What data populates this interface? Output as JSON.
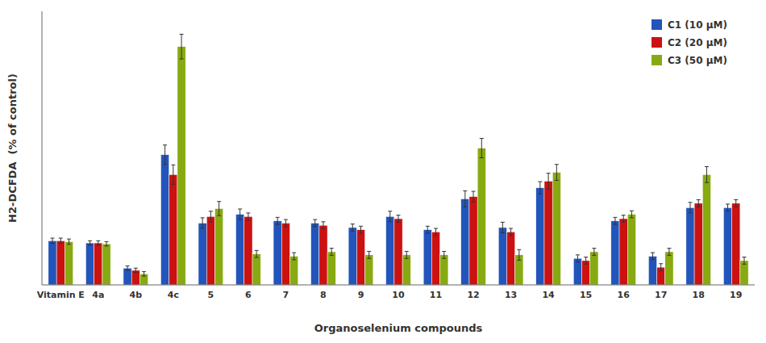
{
  "chart_data": {
    "type": "bar",
    "categories": [
      "Vitamin E",
      "4a",
      "4b",
      "4c",
      "5",
      "6",
      "7",
      "8",
      "9",
      "10",
      "11",
      "12",
      "13",
      "14",
      "15",
      "16",
      "17",
      "18",
      "19"
    ],
    "series": [
      {
        "name": "C1 (10 μM)",
        "color": "#2255bb",
        "values": [
          100,
          95,
          38,
          295,
          140,
          160,
          145,
          140,
          130,
          155,
          125,
          195,
          130,
          220,
          60,
          145,
          65,
          175,
          175
        ],
        "errors": [
          6,
          5,
          5,
          22,
          12,
          12,
          8,
          8,
          8,
          12,
          8,
          18,
          12,
          14,
          8,
          8,
          8,
          12,
          8
        ]
      },
      {
        "name": "C2 (20 μM)",
        "color": "#cc1111",
        "values": [
          100,
          95,
          33,
          250,
          155,
          155,
          140,
          135,
          125,
          150,
          120,
          200,
          120,
          235,
          55,
          150,
          40,
          185,
          185
        ],
        "errors": [
          6,
          5,
          5,
          22,
          12,
          8,
          8,
          8,
          8,
          8,
          8,
          12,
          8,
          18,
          8,
          8,
          8,
          8,
          8
        ]
      },
      {
        "name": "C3 (50 μM)",
        "color": "#88aa11",
        "values": [
          98,
          93,
          25,
          540,
          173,
          70,
          65,
          75,
          68,
          68,
          68,
          310,
          68,
          255,
          75,
          160,
          75,
          250,
          55
        ],
        "errors": [
          6,
          5,
          5,
          28,
          16,
          8,
          8,
          8,
          8,
          8,
          8,
          22,
          12,
          18,
          8,
          8,
          8,
          18,
          8
        ]
      }
    ],
    "ylabel": "H2-DCFDA  (% of control)",
    "xlabel": "Organoselenium compounds",
    "ylim": [
      0,
      620
    ],
    "yticks": [],
    "tick_labels": "x",
    "grid": false,
    "legend": "upper right"
  }
}
